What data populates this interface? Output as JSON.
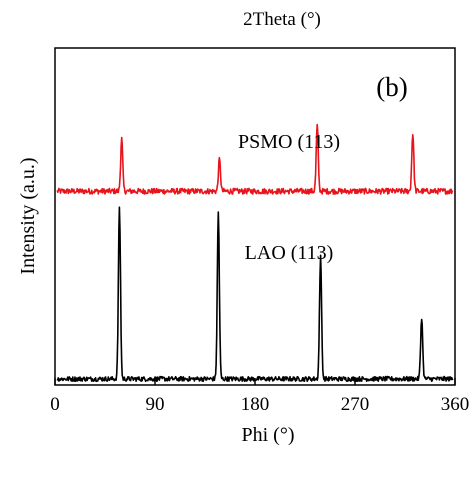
{
  "chart_data": {
    "type": "line",
    "header_caption": "2Theta (°)",
    "panel_label": "(b)",
    "xlabel": "Phi (°)",
    "ylabel": "Intensity (a.u.)",
    "xlim": [
      0,
      360
    ],
    "ylim": [
      0,
      1.8
    ],
    "xticks": [
      "0",
      "90",
      "180",
      "270",
      "360"
    ],
    "grid": false,
    "legend": "none",
    "series": [
      {
        "name": "PSMO (113)",
        "color": "#e8141c",
        "offset": 1.0,
        "noise": 0.03,
        "peaks": [
          {
            "phi": 60,
            "height": 0.28
          },
          {
            "phi": 148,
            "height": 0.17
          },
          {
            "phi": 236,
            "height": 0.35
          },
          {
            "phi": 322,
            "height": 0.31
          }
        ]
      },
      {
        "name": "LAO (113)",
        "color": "#000000",
        "offset": 0.0,
        "noise": 0.025,
        "peaks": [
          {
            "phi": 58,
            "height": 0.92
          },
          {
            "phi": 147,
            "height": 0.89
          },
          {
            "phi": 239,
            "height": 0.65
          },
          {
            "phi": 330,
            "height": 0.33
          }
        ]
      }
    ]
  }
}
